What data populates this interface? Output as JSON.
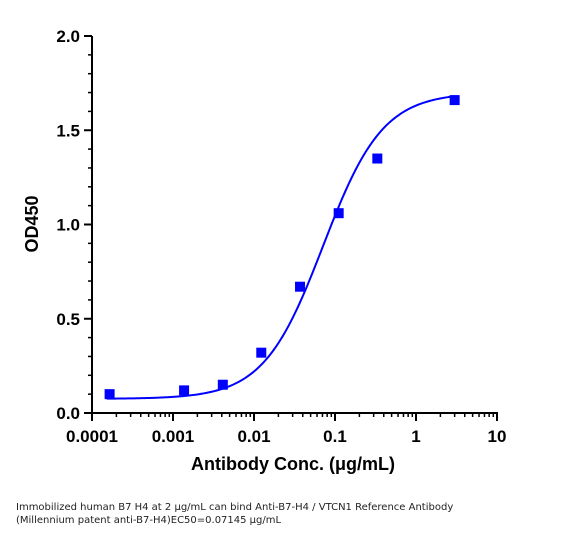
{
  "chart_data": {
    "type": "scatter",
    "xlabel": "Antibody Conc. (μg/mL)",
    "ylabel": "OD450",
    "x_scale": "log",
    "xlim": [
      0.0001,
      10
    ],
    "ylim": [
      0,
      2.0
    ],
    "x_ticks": [
      "0.0001",
      "0.001",
      "0.01",
      "0.1",
      "1",
      "10"
    ],
    "y_ticks": [
      "0.0",
      "0.5",
      "1.0",
      "1.5",
      "2.0"
    ],
    "series": [
      {
        "color": "#0000ff",
        "marker": "square",
        "points": [
          {
            "x": 0.000165,
            "y": 0.1
          },
          {
            "x": 0.00137,
            "y": 0.12
          },
          {
            "x": 0.00412,
            "y": 0.15
          },
          {
            "x": 0.0123,
            "y": 0.32
          },
          {
            "x": 0.037,
            "y": 0.67
          },
          {
            "x": 0.111,
            "y": 1.06
          },
          {
            "x": 0.333,
            "y": 1.35
          },
          {
            "x": 3.0,
            "y": 1.66
          }
        ],
        "fit": {
          "type": "4PL",
          "bottom": 0.075,
          "top": 1.7,
          "ec50": 0.07145,
          "hill": 1.18
        }
      }
    ],
    "caption_lines": [
      "Immobilized human B7 H4 at 2  μg/mL can bind  Anti-B7-H4 / VTCN1 Reference Antibody",
      "(Millennium patent anti-B7-H4)\u0012EC50=0.07145 μg/mL"
    ]
  }
}
